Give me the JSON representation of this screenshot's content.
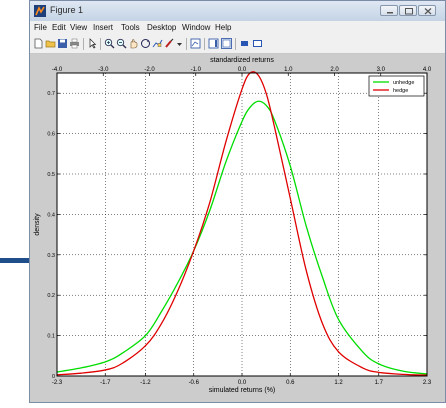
{
  "window": {
    "title": "Figure 1"
  },
  "menu": [
    "File",
    "Edit",
    "View",
    "Insert",
    "Tools",
    "Desktop",
    "Window",
    "Help"
  ],
  "toolbar_icons": [
    "new-figure-icon",
    "open-file-icon",
    "save-icon",
    "print-icon",
    "pointer-icon",
    "zoom-in-icon",
    "zoom-out-icon",
    "pan-icon",
    "rotate-icon",
    "data-cursor-icon",
    "brush-icon",
    "colorbar-icon",
    "legend-icon",
    "hide-plot-tools-icon",
    "show-plot-tools-icon"
  ],
  "chart_data": {
    "type": "line",
    "title": "",
    "top_xlabel": "standardized returns",
    "xlabel": "simulated returns (%)",
    "ylabel": "density",
    "xlim": [
      -2.3,
      2.3
    ],
    "ylim": [
      0,
      0.75
    ],
    "grid": true,
    "legend_position": "top-right",
    "x_ticks": [
      -2.3,
      -1.7,
      -1.2,
      -0.6,
      0.0,
      0.6,
      1.2,
      1.7,
      2.3
    ],
    "x_tick_labels": [
      "-2.3",
      "-1.7",
      "-1.2",
      "-0.6",
      "0.0",
      "0.6",
      "1.2",
      "1.7",
      "2.3"
    ],
    "top_ticks": [
      -4.0,
      -3.0,
      -2.0,
      -1.0,
      0.0,
      1.0,
      2.0,
      3.0,
      4.0
    ],
    "top_tick_labels": [
      "-4.0",
      "-3.0",
      "-2.0",
      "-1.0",
      "0.0",
      "1.0",
      "2.0",
      "3.0",
      "4.0"
    ],
    "y_ticks": [
      0,
      0.1,
      0.2,
      0.3,
      0.4,
      0.5,
      0.6,
      0.7
    ],
    "y_tick_labels": [
      "0",
      "0.1",
      "0.2",
      "0.3",
      "0.4",
      "0.5",
      "0.6",
      "0.7"
    ],
    "series": [
      {
        "name": "unhedge",
        "color": "#00dd00",
        "x": [
          -2.3,
          -2.0,
          -1.7,
          -1.5,
          -1.2,
          -1.0,
          -0.8,
          -0.6,
          -0.4,
          -0.2,
          0.0,
          0.1,
          0.2,
          0.3,
          0.4,
          0.6,
          0.8,
          1.0,
          1.2,
          1.5,
          1.7,
          2.0,
          2.3
        ],
        "y": [
          0.01,
          0.02,
          0.035,
          0.055,
          0.1,
          0.16,
          0.23,
          0.31,
          0.41,
          0.53,
          0.63,
          0.665,
          0.68,
          0.67,
          0.635,
          0.52,
          0.37,
          0.245,
          0.14,
          0.06,
          0.03,
          0.012,
          0.005
        ]
      },
      {
        "name": "hedge",
        "color": "#e00000",
        "x": [
          -2.3,
          -2.0,
          -1.7,
          -1.5,
          -1.2,
          -1.0,
          -0.8,
          -0.6,
          -0.4,
          -0.2,
          0.0,
          0.1,
          0.2,
          0.3,
          0.4,
          0.6,
          0.8,
          1.0,
          1.2,
          1.5,
          1.7,
          2.0,
          2.3
        ],
        "y": [
          0.003,
          0.007,
          0.015,
          0.03,
          0.075,
          0.13,
          0.21,
          0.31,
          0.43,
          0.58,
          0.71,
          0.75,
          0.745,
          0.7,
          0.62,
          0.44,
          0.26,
          0.13,
          0.06,
          0.02,
          0.009,
          0.004,
          0.002
        ]
      }
    ]
  }
}
